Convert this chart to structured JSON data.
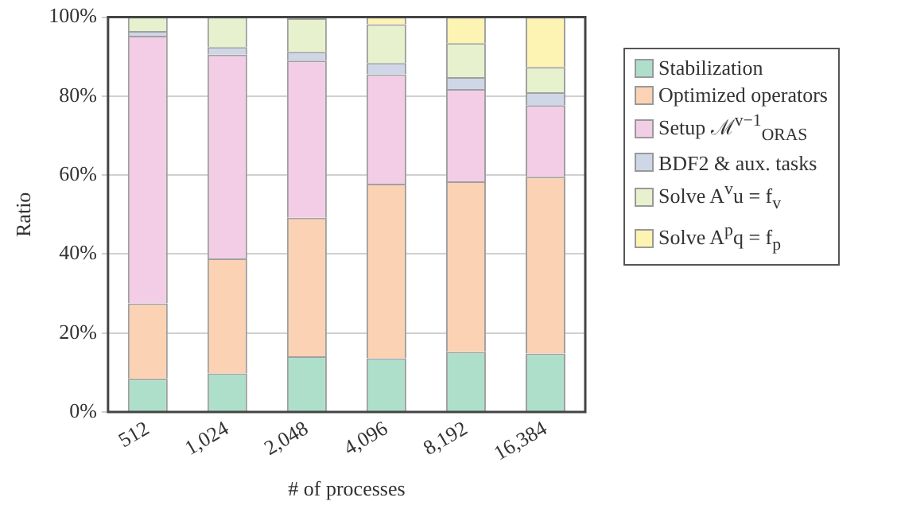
{
  "chart_data": {
    "type": "bar",
    "stacked": true,
    "xlabel": "# of processes",
    "ylabel": "Ratio",
    "categories": [
      "512",
      "1,024",
      "2,048",
      "4,096",
      "8,192",
      "16,384"
    ],
    "series": [
      {
        "name": "Stabilization",
        "color": "#aedfcb",
        "values": [
          8.4,
          9.8,
          14.1,
          13.6,
          15.2,
          14.8
        ]
      },
      {
        "name": "Optimized operators",
        "color": "#fbd2b3",
        "values": [
          19.1,
          29.1,
          35.1,
          44.2,
          43.2,
          44.8
        ]
      },
      {
        "name": "Setup ℳ$^{v−1}$$_{ORAS}$",
        "color": "#f3cde5",
        "values": [
          67.8,
          51.6,
          39.8,
          27.7,
          23.4,
          18.1
        ]
      },
      {
        "name": "BDF2 & aux. tasks",
        "color": "#cfd6e7",
        "values": [
          1.2,
          1.9,
          2.2,
          2.9,
          3.0,
          3.3
        ]
      },
      {
        "name": "Solve A$^{v}$u = f$_{v}$",
        "color": "#e7f1cd",
        "values": [
          3.5,
          7.6,
          8.5,
          9.8,
          8.6,
          6.4
        ]
      },
      {
        "name": "Solve A$^{p}$q = f$_{p}$",
        "color": "#fdf3b2",
        "values": [
          0,
          0,
          0.3,
          1.8,
          6.6,
          12.6
        ]
      }
    ],
    "ylim": [
      0,
      100
    ],
    "yticks": [
      {
        "value": 0,
        "label": "0%"
      },
      {
        "value": 20,
        "label": "20%"
      },
      {
        "value": 40,
        "label": "40%"
      },
      {
        "value": 60,
        "label": "60%"
      },
      {
        "value": 80,
        "label": "80%"
      },
      {
        "value": 100,
        "label": "100%"
      }
    ],
    "grid": "y",
    "legend": "right"
  }
}
